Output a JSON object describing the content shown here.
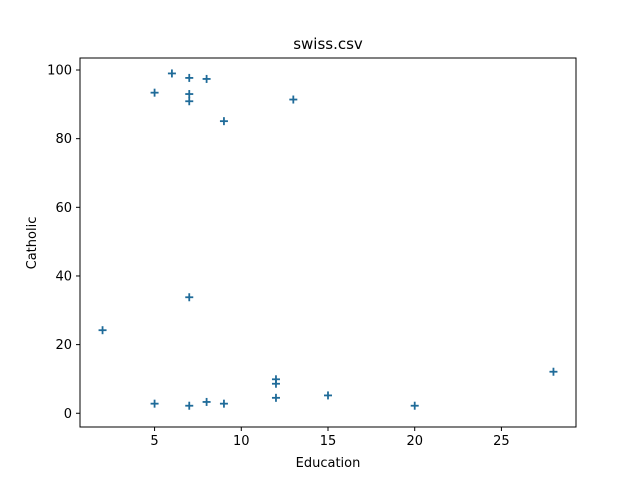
{
  "chart_data": {
    "type": "scatter",
    "title": "swiss.csv",
    "xlabel": "Education",
    "ylabel": "Catholic",
    "xlim": [
      0.7,
      29.3
    ],
    "ylim": [
      -4.0,
      103.5
    ],
    "xticks": [
      5,
      10,
      15,
      20,
      25
    ],
    "yticks": [
      0,
      20,
      40,
      60,
      80,
      100
    ],
    "grid": false,
    "marker": "+",
    "color": "#1f6b99",
    "points": [
      {
        "x": 2,
        "y": 24.2
      },
      {
        "x": 5,
        "y": 93.4
      },
      {
        "x": 5,
        "y": 2.8
      },
      {
        "x": 6,
        "y": 99.0
      },
      {
        "x": 7,
        "y": 97.7
      },
      {
        "x": 7,
        "y": 93.0
      },
      {
        "x": 7,
        "y": 90.9
      },
      {
        "x": 7,
        "y": 33.8
      },
      {
        "x": 7,
        "y": 2.2
      },
      {
        "x": 8,
        "y": 97.4
      },
      {
        "x": 8,
        "y": 3.3
      },
      {
        "x": 9,
        "y": 85.1
      },
      {
        "x": 9,
        "y": 2.8
      },
      {
        "x": 12,
        "y": 9.9
      },
      {
        "x": 12,
        "y": 8.6
      },
      {
        "x": 12,
        "y": 4.5
      },
      {
        "x": 13,
        "y": 91.4
      },
      {
        "x": 15,
        "y": 5.2
      },
      {
        "x": 20,
        "y": 2.2
      },
      {
        "x": 28,
        "y": 12.1
      }
    ]
  }
}
